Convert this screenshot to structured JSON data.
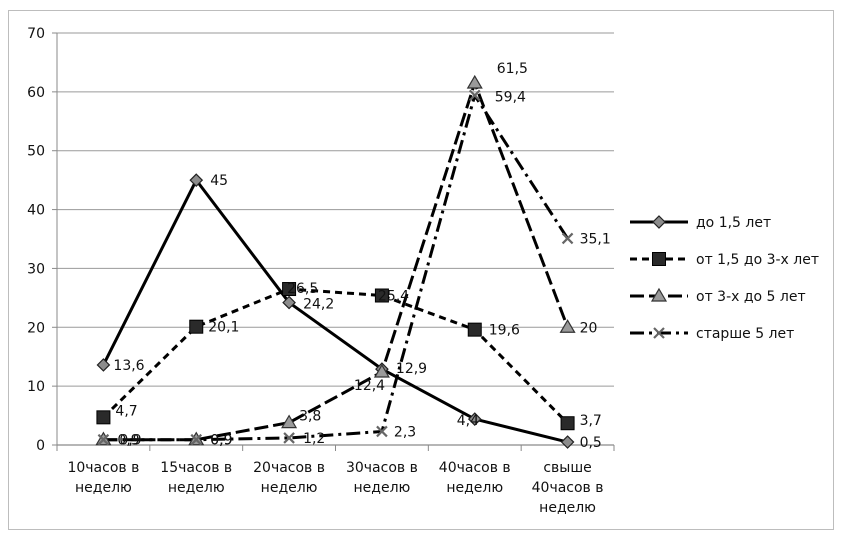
{
  "chart_data": {
    "type": "line",
    "title": "",
    "xlabel": "",
    "ylabel": "",
    "ylim": [
      0,
      70
    ],
    "yticks": [
      0,
      10,
      20,
      30,
      40,
      50,
      60,
      70
    ],
    "grid": true,
    "legend_position": "right",
    "categories": [
      [
        "10часов в",
        "неделю"
      ],
      [
        "15часов в",
        "неделю"
      ],
      [
        "20часов в",
        "неделю"
      ],
      [
        "30часов в",
        "неделю"
      ],
      [
        "40часов в",
        "неделю"
      ],
      [
        "свыше",
        "40часов в",
        "неделю"
      ]
    ],
    "series": [
      {
        "name": "до 1,5 лет",
        "values": [
          13.6,
          45,
          24.2,
          12.9,
          4.4,
          0.5
        ],
        "labels": [
          "13,6",
          "45",
          "24,2",
          "12,9",
          "4,4",
          "0,5"
        ],
        "marker": "diamond",
        "dash": "",
        "color": "#000000"
      },
      {
        "name": "от 1,5 до 3-х лет",
        "values": [
          4.7,
          20.1,
          26.5,
          25.4,
          19.6,
          3.7
        ],
        "labels": [
          "4,7",
          "20,1",
          "26,5",
          "25,4",
          "19,6",
          "3,7"
        ],
        "marker": "square",
        "dash": "7,5",
        "color": "#000000"
      },
      {
        "name": "от 3-х  до 5 лет",
        "values": [
          0.9,
          0.9,
          3.8,
          12.4,
          61.5,
          20
        ],
        "labels": [
          "0,9",
          "0,9",
          "3,8",
          "12,4",
          "61,5",
          "20"
        ],
        "marker": "triangle",
        "dash": "14,5",
        "color": "#000000"
      },
      {
        "name": "старше 5 лет",
        "values": [
          0.9,
          0.9,
          1.2,
          2.3,
          59.4,
          35.1
        ],
        "labels": [
          "0,9",
          "0,9",
          "1,2",
          "2,3",
          "59,4",
          "35,1"
        ],
        "marker": "x",
        "dash": "14,5,3,5",
        "color": "#000000"
      }
    ]
  }
}
